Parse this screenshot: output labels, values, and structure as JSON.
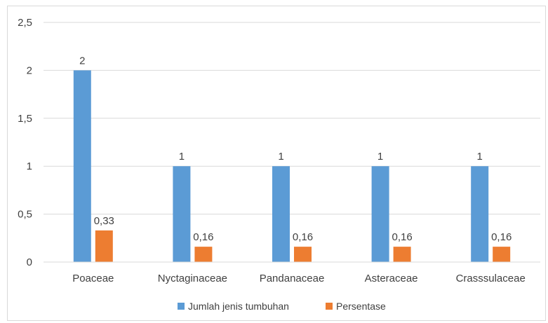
{
  "chart_data": {
    "type": "bar",
    "title": "",
    "xlabel": "",
    "ylabel": "",
    "categories": [
      "Poaceae",
      "Nyctaginaceae",
      "Pandanaceae",
      "Asteraceae",
      "Crasssulaceae"
    ],
    "series": [
      {
        "name": "Jumlah jenis tumbuhan",
        "color": "#5b9bd5",
        "values": [
          2,
          1,
          1,
          1,
          1
        ],
        "labels": [
          "2",
          "1",
          "1",
          "1",
          "1"
        ]
      },
      {
        "name": "Persentase",
        "color": "#ed7d31",
        "values": [
          0.33,
          0.16,
          0.16,
          0.16,
          0.16
        ],
        "labels": [
          "0,33",
          "0,16",
          "0,16",
          "0,16",
          "0,16"
        ]
      }
    ],
    "ylim": [
      0,
      2.5
    ],
    "yticks": [
      "0",
      "0,5",
      "1",
      "1,5",
      "2",
      "2,5"
    ],
    "grid": true,
    "legend_position": "bottom"
  }
}
